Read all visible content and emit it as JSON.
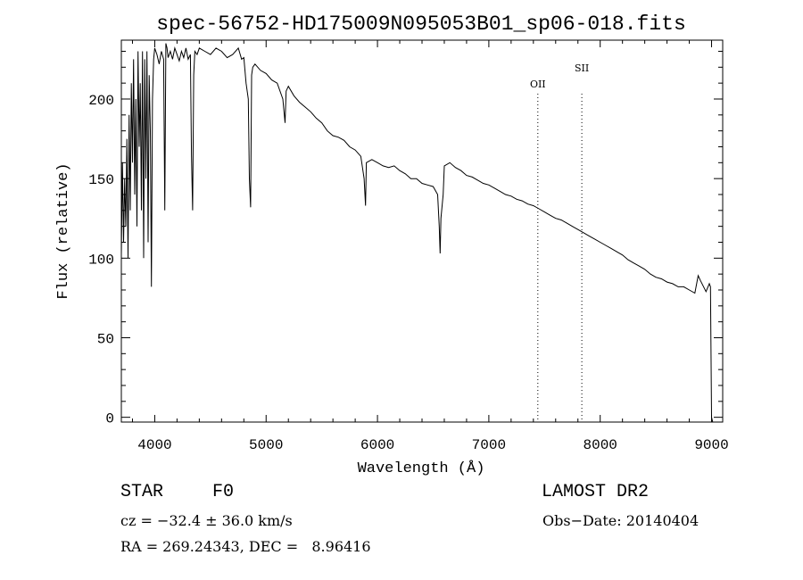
{
  "chart_data": {
    "type": "line",
    "title": "spec-56752-HD175009N095053B01_sp06-018.fits",
    "xlabel": "Wavelength (Å)",
    "ylabel": "Flux (relative)",
    "xlim": [
      3700,
      9100
    ],
    "ylim": [
      -3,
      237
    ],
    "x_ticks": [
      4000,
      5000,
      6000,
      7000,
      8000,
      9000
    ],
    "y_ticks": [
      0,
      50,
      100,
      150,
      200
    ],
    "grid": false,
    "line_color": "#000000",
    "series": [
      {
        "x": [
          3700,
          3710,
          3720,
          3730,
          3740,
          3750,
          3760,
          3770,
          3780,
          3790,
          3800,
          3810,
          3820,
          3830,
          3840,
          3850,
          3860,
          3870,
          3880,
          3890,
          3900,
          3910,
          3920,
          3930,
          3940,
          3950,
          3960,
          3970,
          3980,
          3990,
          4000,
          4020,
          4040,
          4060,
          4080,
          4090,
          4100,
          4110,
          4120,
          4140,
          4160,
          4180,
          4200,
          4220,
          4240,
          4260,
          4280,
          4300,
          4320,
          4330,
          4340,
          4350,
          4360,
          4380,
          4400,
          4450,
          4500,
          4550,
          4600,
          4650,
          4700,
          4750,
          4780,
          4800,
          4820,
          4840,
          4850,
          4861,
          4870,
          4880,
          4900,
          4950,
          5000,
          5050,
          5100,
          5150,
          5170,
          5180,
          5200,
          5250,
          5300,
          5350,
          5400,
          5450,
          5500,
          5550,
          5600,
          5650,
          5700,
          5750,
          5800,
          5850,
          5880,
          5893,
          5900,
          5950,
          6000,
          6050,
          6100,
          6150,
          6200,
          6250,
          6300,
          6350,
          6400,
          6450,
          6500,
          6540,
          6555,
          6563,
          6570,
          6590,
          6600,
          6650,
          6700,
          6750,
          6800,
          6850,
          6900,
          6950,
          7000,
          7050,
          7100,
          7150,
          7200,
          7250,
          7300,
          7350,
          7400,
          7450,
          7500,
          7550,
          7600,
          7650,
          7700,
          7750,
          7800,
          7850,
          7900,
          7950,
          8000,
          8050,
          8100,
          8150,
          8200,
          8250,
          8300,
          8350,
          8400,
          8450,
          8500,
          8550,
          8600,
          8650,
          8700,
          8750,
          8800,
          8850,
          8880,
          8900,
          8950,
          8980,
          8990,
          9000,
          9010
        ],
        "y": [
          102,
          160,
          110,
          150,
          120,
          175,
          100,
          190,
          130,
          210,
          160,
          225,
          140,
          200,
          120,
          230,
          170,
          210,
          130,
          230,
          100,
          225,
          150,
          230,
          110,
          215,
          180,
          82,
          200,
          225,
          232,
          228,
          222,
          230,
          225,
          130,
          235,
          232,
          226,
          230,
          225,
          232,
          228,
          224,
          230,
          226,
          232,
          225,
          228,
          165,
          130,
          215,
          230,
          228,
          232,
          230,
          228,
          232,
          230,
          226,
          228,
          232,
          225,
          226,
          210,
          200,
          150,
          132,
          215,
          220,
          222,
          218,
          216,
          212,
          210,
          200,
          185,
          205,
          208,
          202,
          198,
          195,
          192,
          188,
          185,
          180,
          177,
          176,
          174,
          170,
          168,
          164,
          150,
          133,
          160,
          162,
          160,
          158,
          157,
          158,
          155,
          153,
          150,
          150,
          147,
          146,
          145,
          140,
          120,
          103,
          125,
          140,
          158,
          160,
          157,
          155,
          152,
          151,
          149,
          147,
          146,
          144,
          142,
          140,
          139,
          137,
          136,
          134,
          133,
          131,
          129,
          127,
          125,
          124,
          122,
          120,
          118,
          116,
          114,
          112,
          110,
          108,
          106,
          104,
          102,
          99,
          97,
          95,
          93,
          90,
          88,
          87,
          85,
          84,
          82,
          82,
          80,
          78,
          89,
          86,
          79,
          84,
          82,
          0,
          -3
        ]
      }
    ],
    "lines": [
      {
        "label": "OII",
        "x": 7440
      },
      {
        "label": "SII",
        "x": 7835
      }
    ]
  },
  "info": {
    "object_class": "STAR",
    "subclass": "F0",
    "survey": "LAMOST DR2",
    "velocity": "cz = −32.4 ± 36.0 km/s",
    "obs_date": "Obs−Date: 20140404",
    "coords": "RA = 269.24343, DEC =   8.96416"
  }
}
